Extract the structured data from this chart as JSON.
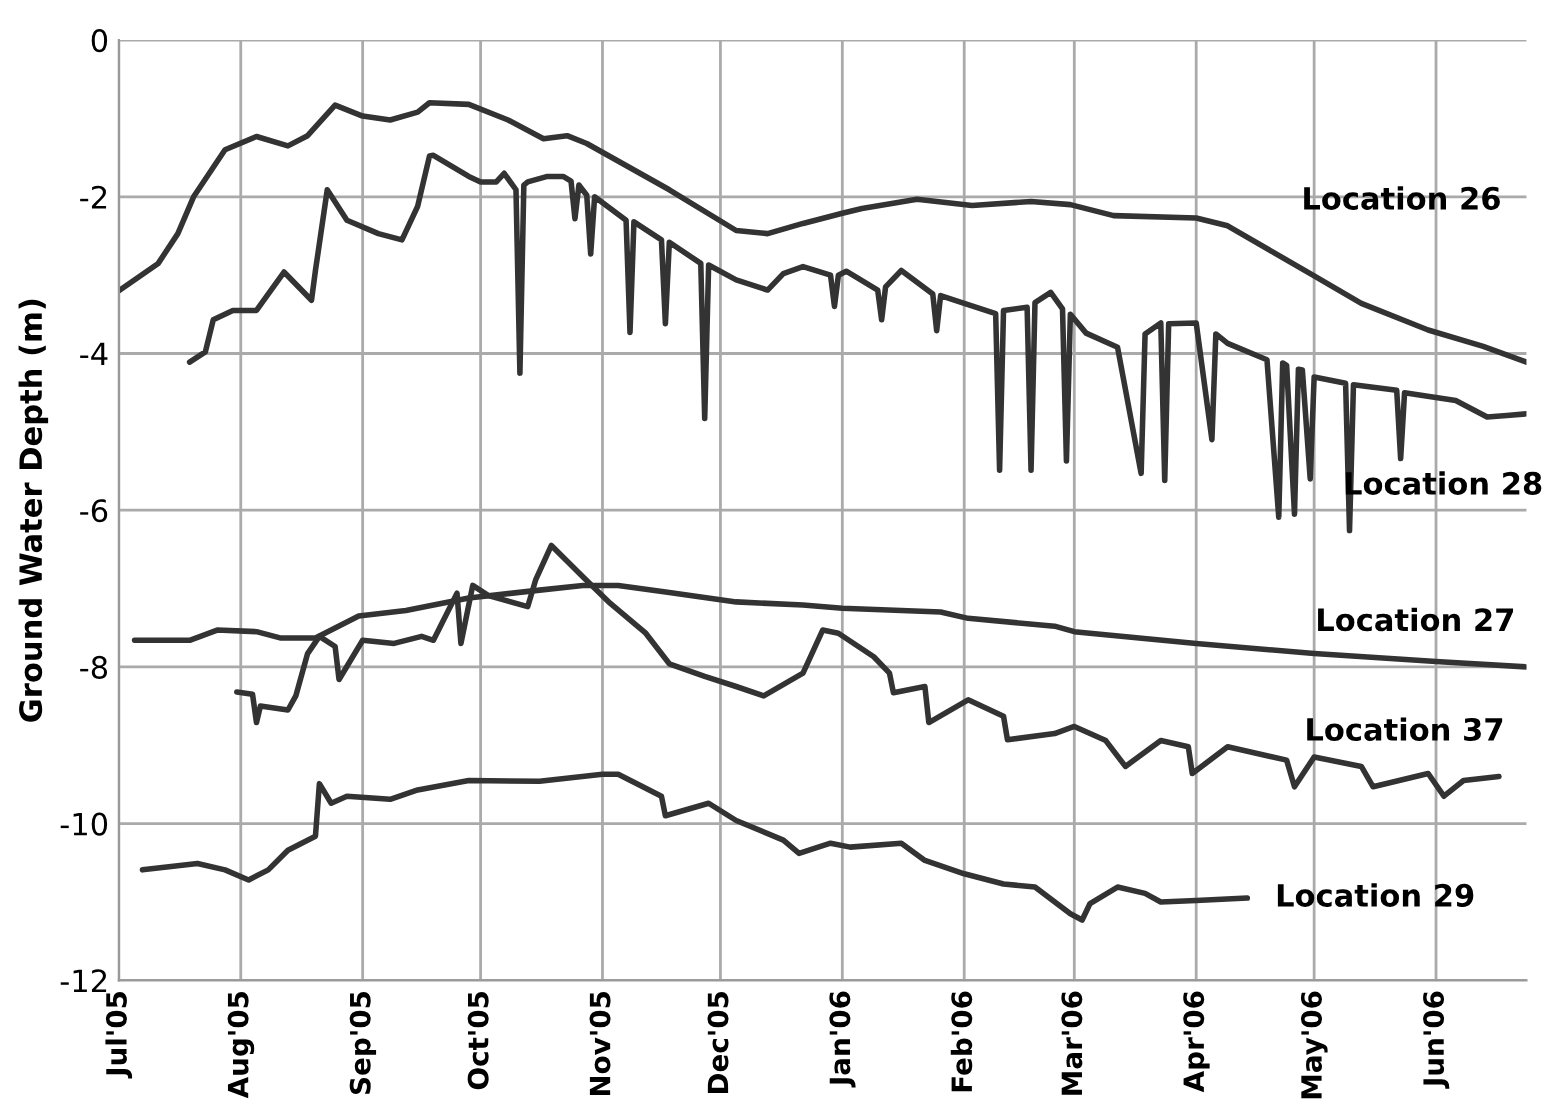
{
  "chart_data": {
    "type": "line",
    "ylabel": "Ground Water Depth (m)",
    "xlim": [
      "2005-07-01",
      "2006-06-24"
    ],
    "ylim": [
      -12,
      0
    ],
    "yticks": [
      -12,
      -10,
      -8,
      -6,
      -4,
      -2,
      0
    ],
    "xticks": [
      {
        "value": "2005-07-01",
        "label": "Jul'05"
      },
      {
        "value": "2005-08-01",
        "label": "Aug'05"
      },
      {
        "value": "2005-09-01",
        "label": "Sep'05"
      },
      {
        "value": "2005-10-01",
        "label": "Oct'05"
      },
      {
        "value": "2005-11-01",
        "label": "Nov'05"
      },
      {
        "value": "2005-12-01",
        "label": "Dec'05"
      },
      {
        "value": "2006-01-01",
        "label": "Jan'06"
      },
      {
        "value": "2006-02-01",
        "label": "Feb'06"
      },
      {
        "value": "2006-03-01",
        "label": "Mar'06"
      },
      {
        "value": "2006-04-01",
        "label": "Apr'06"
      },
      {
        "value": "2006-05-01",
        "label": "May'06"
      },
      {
        "value": "2006-06-01",
        "label": "Jun'06"
      }
    ],
    "grid": true,
    "legend": false,
    "marker": "none",
    "line_style": "solid",
    "series": [
      {
        "name": "Location 26",
        "color": "#333333",
        "x": [
          "2005-07-01",
          "2005-07-11",
          "2005-07-16",
          "2005-07-20",
          "2005-07-28",
          "2005-08-05",
          "2005-08-13",
          "2005-08-18",
          "2005-08-25",
          "2005-09-01",
          "2005-09-08",
          "2005-09-15",
          "2005-09-18",
          "2005-09-28",
          "2005-10-08",
          "2005-10-17",
          "2005-10-23",
          "2005-10-28",
          "2005-11-18",
          "2005-12-05",
          "2005-12-13",
          "2005-12-22",
          "2006-01-01",
          "2006-01-06",
          "2006-01-20",
          "2006-02-03",
          "2006-02-18",
          "2006-02-28",
          "2006-03-11",
          "2006-04-01",
          "2006-04-09",
          "2006-05-01",
          "2006-05-13",
          "2006-05-30",
          "2006-06-13",
          "2006-06-24"
        ],
        "values": [
          -3.2,
          -2.85,
          -2.47,
          -2.0,
          -1.4,
          -1.23,
          -1.35,
          -1.22,
          -0.83,
          -0.97,
          -1.02,
          -0.92,
          -0.8,
          -0.82,
          -1.02,
          -1.26,
          -1.22,
          -1.32,
          -1.91,
          -2.43,
          -2.47,
          -2.34,
          -2.21,
          -2.15,
          -2.03,
          -2.11,
          -2.06,
          -2.1,
          -2.24,
          -2.27,
          -2.37,
          -3.01,
          -3.36,
          -3.7,
          -3.91,
          -4.11
        ]
      },
      {
        "name": "Location 28",
        "color": "#333333",
        "x": [
          "2005-07-19",
          "2005-07-23",
          "2005-07-25",
          "2005-07-30",
          "2005-08-05",
          "2005-08-12",
          "2005-08-19",
          "2005-08-20",
          "2005-08-23",
          "2005-08-28",
          "2005-09-05",
          "2005-09-11",
          "2005-09-15",
          "2005-09-18",
          "2005-09-19",
          "2005-09-28",
          "2005-10-01",
          "2005-10-05",
          "2005-10-07",
          "2005-10-10",
          "2005-10-11",
          "2005-10-12",
          "2005-10-13",
          "2005-10-18",
          "2005-10-22",
          "2005-10-24",
          "2005-10-25",
          "2005-10-26",
          "2005-10-28",
          "2005-10-29",
          "2005-10-30",
          "2005-11-07",
          "2005-11-08",
          "2005-11-09",
          "2005-11-16",
          "2005-11-17",
          "2005-11-18",
          "2005-11-26",
          "2005-11-27",
          "2005-11-28",
          "2005-12-05",
          "2005-12-13",
          "2005-12-17",
          "2005-12-22",
          "2005-12-29",
          "2005-12-30",
          "2005-12-31",
          "2006-01-02",
          "2006-01-10",
          "2006-01-11",
          "2006-01-12",
          "2006-01-16",
          "2006-01-24",
          "2006-01-25",
          "2006-01-26",
          "2006-02-01",
          "2006-02-09",
          "2006-02-10",
          "2006-02-11",
          "2006-02-17",
          "2006-02-18",
          "2006-02-19",
          "2006-02-23",
          "2006-02-26",
          "2006-02-27",
          "2006-02-28",
          "2006-03-04",
          "2006-03-12",
          "2006-03-18",
          "2006-03-19",
          "2006-03-23",
          "2006-03-24",
          "2006-03-25",
          "2006-04-01",
          "2006-04-05",
          "2006-04-06",
          "2006-04-09",
          "2006-04-19",
          "2006-04-22",
          "2006-04-23",
          "2006-04-24",
          "2006-04-26",
          "2006-04-27",
          "2006-04-28",
          "2006-04-30",
          "2006-05-01",
          "2006-05-09",
          "2006-05-10",
          "2006-05-11",
          "2006-05-22",
          "2006-05-23",
          "2006-05-24",
          "2006-06-06",
          "2006-06-14",
          "2006-06-19",
          "2006-06-24"
        ],
        "values": [
          -4.11,
          -3.98,
          -3.57,
          -3.45,
          -3.45,
          -2.96,
          -3.32,
          -2.94,
          -1.91,
          -2.3,
          -2.47,
          -2.55,
          -2.12,
          -1.48,
          -1.47,
          -1.74,
          -1.81,
          -1.81,
          -1.7,
          -1.91,
          -4.25,
          -1.85,
          -1.81,
          -1.74,
          -1.74,
          -1.8,
          -2.28,
          -1.85,
          -1.98,
          -2.73,
          -2.0,
          -2.3,
          -3.73,
          -2.32,
          -2.55,
          -3.62,
          -2.58,
          -2.85,
          -4.83,
          -2.87,
          -3.06,
          -3.19,
          -2.98,
          -2.89,
          -3.0,
          -3.4,
          -3.0,
          -2.95,
          -3.19,
          -3.57,
          -3.15,
          -2.94,
          -3.24,
          -3.71,
          -3.26,
          -3.36,
          -3.49,
          -5.49,
          -3.45,
          -3.41,
          -5.49,
          -3.35,
          -3.22,
          -3.43,
          -5.37,
          -3.5,
          -3.74,
          -3.92,
          -5.53,
          -3.75,
          -3.61,
          -5.62,
          -3.62,
          -3.61,
          -5.1,
          -3.75,
          -3.87,
          -4.08,
          -6.09,
          -4.12,
          -4.15,
          -6.05,
          -4.2,
          -4.21,
          -5.6,
          -4.3,
          -4.38,
          -6.26,
          -4.4,
          -4.47,
          -5.34,
          -4.5,
          -4.6,
          -4.81,
          -4.79,
          -4.77
        ]
      },
      {
        "name": "Location 27",
        "color": "#333333",
        "x": [
          "2005-07-05",
          "2005-07-19",
          "2005-07-26",
          "2005-08-05",
          "2005-08-11",
          "2005-08-20",
          "2005-08-31",
          "2005-09-12",
          "2005-09-28",
          "2005-10-16",
          "2005-10-27",
          "2005-11-05",
          "2005-11-18",
          "2005-12-05",
          "2005-12-22",
          "2006-01-01",
          "2006-01-26",
          "2006-02-02",
          "2006-02-24",
          "2006-03-01",
          "2006-04-01",
          "2006-05-01",
          "2006-06-01",
          "2006-06-24"
        ],
        "values": [
          -7.66,
          -7.66,
          -7.53,
          -7.55,
          -7.63,
          -7.63,
          -7.35,
          -7.28,
          -7.12,
          -7.02,
          -6.96,
          -6.96,
          -7.05,
          -7.17,
          -7.21,
          -7.25,
          -7.3,
          -7.38,
          -7.48,
          -7.55,
          -7.7,
          -7.83,
          -7.93,
          -8.0
        ]
      },
      {
        "name": "Location 37",
        "color": "#333333",
        "x": [
          "2005-07-31",
          "2005-08-04",
          "2005-08-05",
          "2005-08-06",
          "2005-08-13",
          "2005-08-15",
          "2005-08-18",
          "2005-08-21",
          "2005-08-25",
          "2005-08-26",
          "2005-09-01",
          "2005-09-09",
          "2005-09-16",
          "2005-09-19",
          "2005-09-25",
          "2005-09-26",
          "2005-09-29",
          "2005-10-03",
          "2005-10-13",
          "2005-10-15",
          "2005-10-19",
          "2005-10-27",
          "2005-11-03",
          "2005-11-12",
          "2005-11-18",
          "2005-11-27",
          "2005-12-05",
          "2005-12-12",
          "2005-12-22",
          "2005-12-27",
          "2005-12-31",
          "2006-01-09",
          "2006-01-13",
          "2006-01-14",
          "2006-01-22",
          "2006-01-23",
          "2006-02-02",
          "2006-02-11",
          "2006-02-12",
          "2006-02-24",
          "2006-03-01",
          "2006-03-09",
          "2006-03-14",
          "2006-03-23",
          "2006-03-30",
          "2006-03-31",
          "2006-04-09",
          "2006-04-24",
          "2006-04-26",
          "2006-05-01",
          "2006-05-13",
          "2006-05-16",
          "2006-05-30",
          "2006-06-03",
          "2006-06-08",
          "2006-06-17"
        ],
        "values": [
          -8.32,
          -8.35,
          -8.71,
          -8.5,
          -8.55,
          -8.37,
          -7.83,
          -7.61,
          -7.74,
          -8.16,
          -7.66,
          -7.7,
          -7.61,
          -7.66,
          -7.06,
          -7.7,
          -6.96,
          -7.09,
          -7.23,
          -6.89,
          -6.45,
          -6.85,
          -7.19,
          -7.57,
          -7.96,
          -8.12,
          -8.25,
          -8.37,
          -8.08,
          -7.53,
          -7.57,
          -7.87,
          -8.08,
          -8.33,
          -8.25,
          -8.71,
          -8.42,
          -8.63,
          -8.93,
          -8.85,
          -8.76,
          -8.94,
          -9.27,
          -8.94,
          -9.02,
          -9.36,
          -9.02,
          -9.19,
          -9.53,
          -9.15,
          -9.27,
          -9.53,
          -9.36,
          -9.65,
          -9.45,
          -9.4
        ]
      },
      {
        "name": "Location 29",
        "color": "#333333",
        "x": [
          "2005-07-07",
          "2005-07-21",
          "2005-07-28",
          "2005-08-03",
          "2005-08-08",
          "2005-08-13",
          "2005-08-20",
          "2005-08-21",
          "2005-08-24",
          "2005-08-28",
          "2005-09-08",
          "2005-09-15",
          "2005-09-28",
          "2005-10-16",
          "2005-11-01",
          "2005-11-05",
          "2005-11-16",
          "2005-11-17",
          "2005-11-28",
          "2005-12-05",
          "2005-12-17",
          "2005-12-21",
          "2005-12-29",
          "2006-01-03",
          "2006-01-16",
          "2006-01-22",
          "2006-02-01",
          "2006-02-11",
          "2006-02-19",
          "2006-02-28",
          "2006-03-03",
          "2006-03-05",
          "2006-03-12",
          "2006-03-19",
          "2006-03-23",
          "2006-04-01",
          "2006-04-14"
        ],
        "values": [
          -10.59,
          -10.51,
          -10.59,
          -10.72,
          -10.59,
          -10.34,
          -10.16,
          -9.49,
          -9.74,
          -9.65,
          -9.69,
          -9.57,
          -9.45,
          -9.46,
          -9.37,
          -9.37,
          -9.65,
          -9.9,
          -9.74,
          -9.96,
          -10.21,
          -10.38,
          -10.25,
          -10.3,
          -10.25,
          -10.47,
          -10.64,
          -10.77,
          -10.81,
          -11.15,
          -11.23,
          -11.02,
          -10.81,
          -10.89,
          -11.0,
          -10.98,
          -10.95
        ]
      }
    ]
  }
}
